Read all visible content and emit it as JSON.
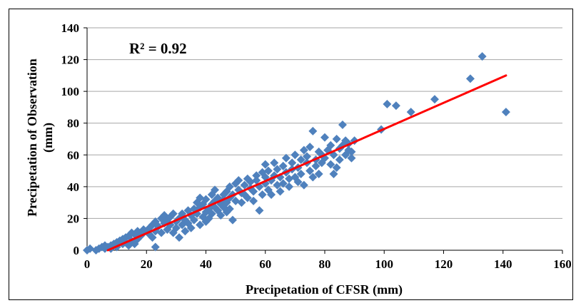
{
  "chart_data": {
    "type": "scatter",
    "title": "",
    "xlabel": "Precipetation of CFSR (mm)",
    "ylabel_lines": [
      "Precipetation of Observation",
      "(mm)"
    ],
    "xlim": [
      0,
      160
    ],
    "ylim": [
      0,
      140
    ],
    "xticks": [
      0,
      20,
      40,
      60,
      80,
      100,
      120,
      140,
      160
    ],
    "yticks": [
      0,
      20,
      40,
      60,
      80,
      100,
      120,
      140
    ],
    "grid": "horizontal",
    "legend": "none",
    "annotation": "R² = 0.92",
    "colors": {
      "points": "#4f81bd",
      "trendline": "#ff0000",
      "grid": "#a6a6a6"
    },
    "series": [
      {
        "marker": "diamond",
        "points": [
          [
            0,
            0
          ],
          [
            1,
            1
          ],
          [
            3,
            0
          ],
          [
            4,
            1
          ],
          [
            5,
            2
          ],
          [
            6,
            1
          ],
          [
            6,
            3
          ],
          [
            7,
            2
          ],
          [
            8,
            3
          ],
          [
            8,
            1
          ],
          [
            9,
            4
          ],
          [
            10,
            5
          ],
          [
            10,
            2
          ],
          [
            11,
            6
          ],
          [
            12,
            4
          ],
          [
            12,
            7
          ],
          [
            13,
            8
          ],
          [
            13,
            5
          ],
          [
            14,
            3
          ],
          [
            14,
            9
          ],
          [
            15,
            11
          ],
          [
            15,
            6
          ],
          [
            16,
            4
          ],
          [
            16,
            10
          ],
          [
            17,
            12
          ],
          [
            17,
            7
          ],
          [
            18,
            9
          ],
          [
            19,
            11
          ],
          [
            19,
            13
          ],
          [
            20,
            12
          ],
          [
            21,
            10
          ],
          [
            21,
            14
          ],
          [
            22,
            16
          ],
          [
            22,
            8
          ],
          [
            23,
            2
          ],
          [
            23,
            12
          ],
          [
            23,
            18
          ],
          [
            24,
            15
          ],
          [
            25,
            11
          ],
          [
            25,
            20
          ],
          [
            26,
            17
          ],
          [
            26,
            22
          ],
          [
            27,
            13
          ],
          [
            27,
            19
          ],
          [
            28,
            21
          ],
          [
            28,
            16
          ],
          [
            29,
            11
          ],
          [
            29,
            23
          ],
          [
            30,
            18
          ],
          [
            30,
            14
          ],
          [
            31,
            8
          ],
          [
            31,
            20
          ],
          [
            32,
            16
          ],
          [
            32,
            23
          ],
          [
            33,
            12
          ],
          [
            33,
            19
          ],
          [
            34,
            25
          ],
          [
            34,
            17
          ],
          [
            35,
            22
          ],
          [
            35,
            14
          ],
          [
            36,
            26
          ],
          [
            36,
            19
          ],
          [
            37,
            30
          ],
          [
            37,
            23
          ],
          [
            38,
            16
          ],
          [
            38,
            33
          ],
          [
            38,
            27
          ],
          [
            39,
            21
          ],
          [
            39,
            29
          ],
          [
            40,
            24
          ],
          [
            40,
            18
          ],
          [
            40,
            32
          ],
          [
            41,
            26
          ],
          [
            41,
            20
          ],
          [
            42,
            29
          ],
          [
            42,
            35
          ],
          [
            42,
            23
          ],
          [
            43,
            27
          ],
          [
            43,
            38
          ],
          [
            43,
            31
          ],
          [
            44,
            25
          ],
          [
            44,
            33
          ],
          [
            45,
            29
          ],
          [
            45,
            22
          ],
          [
            46,
            35
          ],
          [
            46,
            27
          ],
          [
            46,
            32
          ],
          [
            47,
            37
          ],
          [
            47,
            30
          ],
          [
            47,
            24
          ],
          [
            48,
            40
          ],
          [
            48,
            33
          ],
          [
            48,
            26
          ],
          [
            49,
            19
          ],
          [
            49,
            35
          ],
          [
            50,
            42
          ],
          [
            50,
            31
          ],
          [
            51,
            38
          ],
          [
            51,
            44
          ],
          [
            52,
            36
          ],
          [
            52,
            30
          ],
          [
            53,
            41
          ],
          [
            53,
            35
          ],
          [
            54,
            45
          ],
          [
            54,
            33
          ],
          [
            55,
            39
          ],
          [
            55,
            43
          ],
          [
            56,
            37
          ],
          [
            56,
            31
          ],
          [
            57,
            44
          ],
          [
            57,
            47
          ],
          [
            58,
            25
          ],
          [
            58,
            40
          ],
          [
            59,
            35
          ],
          [
            59,
            49
          ],
          [
            60,
            42
          ],
          [
            60,
            46
          ],
          [
            60,
            54
          ],
          [
            61,
            38
          ],
          [
            61,
            50
          ],
          [
            62,
            44
          ],
          [
            62,
            35
          ],
          [
            63,
            47
          ],
          [
            63,
            55
          ],
          [
            64,
            41
          ],
          [
            64,
            51
          ],
          [
            65,
            37
          ],
          [
            65,
            46
          ],
          [
            66,
            53
          ],
          [
            66,
            42
          ],
          [
            67,
            49
          ],
          [
            67,
            58
          ],
          [
            68,
            45
          ],
          [
            68,
            40
          ],
          [
            69,
            55
          ],
          [
            69,
            51
          ],
          [
            70,
            46
          ],
          [
            70,
            60
          ],
          [
            71,
            43
          ],
          [
            71,
            52
          ],
          [
            72,
            57
          ],
          [
            72,
            48
          ],
          [
            73,
            41
          ],
          [
            73,
            63
          ],
          [
            74,
            55
          ],
          [
            74,
            59
          ],
          [
            75,
            65
          ],
          [
            75,
            50
          ],
          [
            76,
            75
          ],
          [
            76,
            46
          ],
          [
            77,
            53
          ],
          [
            77,
            57
          ],
          [
            78,
            62
          ],
          [
            78,
            48
          ],
          [
            79,
            55
          ],
          [
            79,
            60
          ],
          [
            80,
            71
          ],
          [
            80,
            58
          ],
          [
            81,
            63
          ],
          [
            82,
            54
          ],
          [
            82,
            66
          ],
          [
            83,
            48
          ],
          [
            83,
            60
          ],
          [
            84,
            70
          ],
          [
            84,
            52
          ],
          [
            85,
            64
          ],
          [
            85,
            57
          ],
          [
            86,
            79
          ],
          [
            86,
            66
          ],
          [
            87,
            60
          ],
          [
            87,
            69
          ],
          [
            88,
            63
          ],
          [
            88,
            67
          ],
          [
            89,
            58
          ],
          [
            89,
            62
          ],
          [
            90,
            69
          ],
          [
            99,
            76
          ],
          [
            101,
            92
          ],
          [
            104,
            91
          ],
          [
            109,
            87
          ],
          [
            117,
            95
          ],
          [
            129,
            108
          ],
          [
            133,
            122
          ],
          [
            141,
            87
          ]
        ]
      }
    ],
    "trendline": {
      "x": [
        7,
        141
      ],
      "y": [
        0,
        110
      ]
    }
  }
}
